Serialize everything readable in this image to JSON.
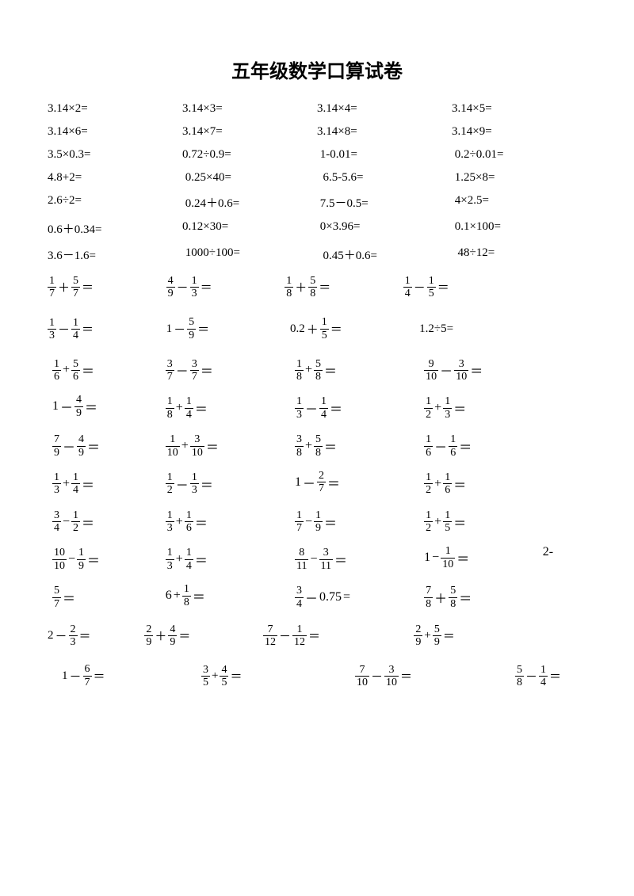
{
  "title": "五年级数学口算试卷",
  "decimal_rows": [
    [
      "3.14×2=",
      "3.14×3=",
      "3.14×4=",
      "3.14×5="
    ],
    [
      "3.14×6=",
      "3.14×7=",
      "3.14×8=",
      "3.14×9="
    ],
    [
      "3.5×0.3=",
      "0.72÷0.9=",
      " 1-0.01=",
      " 0.2÷0.01="
    ],
    [
      "4.8+2=",
      " 0.25×40=",
      "  6.5-5.6=",
      " 1.25×8="
    ],
    [
      "2.6÷2=",
      " 0.24＋0.6=",
      " 7.5－0.5=",
      " 4×2.5="
    ],
    [
      "0.6＋0.34=",
      "0.12×30=",
      " 0×3.96=",
      " 0.1×100="
    ],
    [
      "3.6－1.6=",
      " 1000÷100=",
      "  0.45＋0.6=",
      "  48÷12="
    ]
  ],
  "frac_row1": [
    {
      "a": {
        "n": "1",
        "d": "7"
      },
      "op": "＋",
      "b": {
        "n": "5",
        "d": "7"
      }
    },
    {
      "a": {
        "n": "4",
        "d": "9"
      },
      "op": "－",
      "b": {
        "n": "1",
        "d": "3"
      }
    },
    {
      "a": {
        "n": "1",
        "d": "8"
      },
      "op": "＋",
      "b": {
        "n": "5",
        "d": "8"
      }
    },
    {
      "a": {
        "n": "1",
        "d": "4"
      },
      "op": "－",
      "b": {
        "n": "1",
        "d": "5"
      }
    }
  ],
  "frac_row2": [
    {
      "type": "ff",
      "a": {
        "n": "1",
        "d": "3"
      },
      "op": "－",
      "b": {
        "n": "1",
        "d": "4"
      }
    },
    {
      "type": "nf",
      "a": "1",
      "op": "－",
      "b": {
        "n": "5",
        "d": "9"
      }
    },
    {
      "type": "nf",
      "a": "0.2",
      "op": "＋",
      "b": {
        "n": "1",
        "d": "5"
      }
    },
    {
      "type": "plain",
      "text": "1.2÷5="
    }
  ],
  "group2": [
    [
      {
        "type": "ff",
        "a": {
          "n": "1",
          "d": "6"
        },
        "op": "+",
        "b": {
          "n": "5",
          "d": "6"
        }
      },
      {
        "type": "ff",
        "a": {
          "n": "3",
          "d": "7"
        },
        "op": "－",
        "b": {
          "n": "3",
          "d": "7"
        }
      },
      {
        "type": "ff",
        "a": {
          "n": "1",
          "d": "8"
        },
        "op": "+",
        "b": {
          "n": "5",
          "d": "8"
        }
      },
      {
        "type": "ff",
        "a": {
          "n": "9",
          "d": "10"
        },
        "op": "－",
        "b": {
          "n": "3",
          "d": "10"
        }
      }
    ],
    [
      {
        "type": "nf",
        "a": "1",
        "op": "－",
        "b": {
          "n": "4",
          "d": "9"
        }
      },
      {
        "type": "ff",
        "a": {
          "n": "1",
          "d": "8"
        },
        "op": "+",
        "b": {
          "n": "1",
          "d": "4"
        }
      },
      {
        "type": "ff",
        "a": {
          "n": "1",
          "d": "3"
        },
        "op": "－",
        "b": {
          "n": "1",
          "d": "4"
        }
      },
      {
        "type": "ff",
        "a": {
          "n": "1",
          "d": "2"
        },
        "op": "+",
        "b": {
          "n": "1",
          "d": "3"
        }
      }
    ],
    [
      {
        "type": "ff",
        "a": {
          "n": "7",
          "d": "9"
        },
        "op": "－",
        "b": {
          "n": "4",
          "d": "9"
        }
      },
      {
        "type": "ff",
        "a": {
          "n": "1",
          "d": "10"
        },
        "op": "+",
        "b": {
          "n": "3",
          "d": "10"
        }
      },
      {
        "type": "ff",
        "a": {
          "n": "3",
          "d": "8"
        },
        "op": "+",
        "b": {
          "n": "5",
          "d": "8"
        }
      },
      {
        "type": "ff",
        "a": {
          "n": "1",
          "d": "6"
        },
        "op": "－",
        "b": {
          "n": "1",
          "d": "6"
        }
      }
    ],
    [
      {
        "type": "ff",
        "a": {
          "n": "1",
          "d": "3"
        },
        "op": "+",
        "b": {
          "n": "1",
          "d": "4"
        }
      },
      {
        "type": "ff",
        "a": {
          "n": "1",
          "d": "2"
        },
        "op": "－",
        "b": {
          "n": "1",
          "d": "3"
        }
      },
      {
        "type": "nf",
        "a": "1",
        "op": "－",
        "b": {
          "n": "2",
          "d": "7"
        }
      },
      {
        "type": "ff",
        "a": {
          "n": "1",
          "d": "2"
        },
        "op": "+",
        "b": {
          "n": "1",
          "d": "6"
        }
      }
    ],
    [
      {
        "type": "ff",
        "a": {
          "n": "3",
          "d": "4"
        },
        "op": "−",
        "b": {
          "n": "1",
          "d": "2"
        }
      },
      {
        "type": "ff",
        "a": {
          "n": "1",
          "d": "3"
        },
        "op": "+",
        "b": {
          "n": "1",
          "d": "6"
        }
      },
      {
        "type": "ff",
        "a": {
          "n": "1",
          "d": "7"
        },
        "op": "−",
        "b": {
          "n": "1",
          "d": "9"
        }
      },
      {
        "type": "ff",
        "a": {
          "n": "1",
          "d": "2"
        },
        "op": "+",
        "b": {
          "n": "1",
          "d": "5"
        }
      }
    ],
    [
      {
        "type": "ff",
        "a": {
          "n": "10",
          "d": "10"
        },
        "op": "−",
        "b": {
          "n": "1",
          "d": "9"
        }
      },
      {
        "type": "ff",
        "a": {
          "n": "1",
          "d": "3"
        },
        "op": "+",
        "b": {
          "n": "1",
          "d": "4"
        }
      },
      {
        "type": "ff",
        "a": {
          "n": "8",
          "d": "11"
        },
        "op": "−",
        "b": {
          "n": "3",
          "d": "11"
        }
      },
      {
        "type": "nf",
        "a": "1",
        "op": "−",
        "b": {
          "n": "1",
          "d": "10"
        }
      },
      {
        "type": "plain",
        "text": "2-"
      }
    ],
    [
      {
        "type": "f",
        "a": {
          "n": "5",
          "d": "7"
        }
      },
      {
        "type": "nfL",
        "a": "6",
        "op": "+",
        "b": {
          "n": "1",
          "d": "8"
        }
      },
      {
        "type": "fn",
        "a": {
          "n": "3",
          "d": "4"
        },
        "op": "－",
        "b": "0.75"
      },
      {
        "type": "ff",
        "a": {
          "n": "7",
          "d": "8"
        },
        "op": "＋",
        "b": {
          "n": "5",
          "d": "8"
        }
      }
    ]
  ],
  "frac_row_last2": [
    [
      {
        "type": "nf",
        "a": "2",
        "op": "－",
        "b": {
          "n": "2",
          "d": "3"
        }
      },
      {
        "type": "ff",
        "a": {
          "n": "2",
          "d": "9"
        },
        "op": "＋",
        "b": {
          "n": "4",
          "d": "9"
        }
      },
      {
        "type": "ff",
        "a": {
          "n": "7",
          "d": "12"
        },
        "op": "－",
        "b": {
          "n": "1",
          "d": "12"
        }
      },
      {
        "type": "ff",
        "a": {
          "n": "2",
          "d": "9"
        },
        "op": "+",
        "b": {
          "n": "5",
          "d": "9"
        }
      }
    ],
    [
      {
        "type": "nf",
        "a": "1",
        "op": "－",
        "b": {
          "n": "6",
          "d": "7"
        }
      },
      {
        "type": "ff",
        "a": {
          "n": "3",
          "d": "5"
        },
        "op": "+",
        "b": {
          "n": "4",
          "d": "5"
        }
      },
      {
        "type": "ff",
        "a": {
          "n": "7",
          "d": "10"
        },
        "op": "－",
        "b": {
          "n": "3",
          "d": "10"
        }
      },
      {
        "type": "ff",
        "a": {
          "n": "5",
          "d": "8"
        },
        "op": "－",
        "b": {
          "n": "1",
          "d": "4"
        }
      }
    ]
  ]
}
